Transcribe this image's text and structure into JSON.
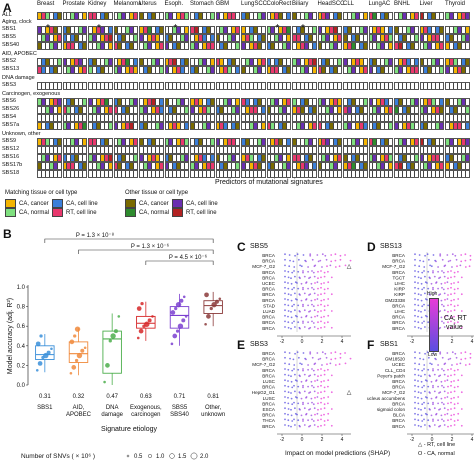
{
  "panel_a": {
    "label": "A",
    "tissues": [
      "Breast",
      "Prostate",
      "Kidney",
      "Melanoma",
      "Uterus",
      "Esoph.",
      "Stomach",
      "GBM",
      "LungSCC",
      "ColoRect",
      "Biliary",
      "HeadSCC",
      "CLL",
      "LungAC",
      "BNHL",
      "Liver",
      "Thyroid"
    ],
    "row_all": "ALL",
    "sections": [
      {
        "title": "Aging, clock",
        "rows": [
          "SBS1",
          "SBS5",
          "SBS40"
        ]
      },
      {
        "title": "AID, APOBEC",
        "rows": [
          "SBS2",
          "SBS13"
        ]
      },
      {
        "title": "DNA damage",
        "rows": [
          "SBS3"
        ]
      },
      {
        "title": "Carcinogen, exogenous",
        "rows": [
          "SBS6",
          "SBS26",
          "SBS4",
          "SBS7a"
        ]
      },
      {
        "title": "Unknown, other",
        "rows": [
          "SBS9",
          "SBS12",
          "SBS16",
          "SBS17b",
          "SBS18"
        ]
      }
    ],
    "xlabel": "Predictors of mutational signatures",
    "legend_left_title": "Matching tissue or cell type",
    "legend_right_title": "Other tissue or cell type",
    "legend_items": [
      {
        "label": "CA, cancer",
        "color": "#f4b400"
      },
      {
        "label": "CA, cell line",
        "color": "#3b7fd9"
      },
      {
        "label": "CA, normal",
        "color": "#7fe07f"
      },
      {
        "label": "RT, cell line",
        "color": "#e8386d"
      },
      {
        "label": "CA, cancer",
        "color": "#7a6a00"
      },
      {
        "label": "CA, cell line",
        "color": "#6a2fb0"
      },
      {
        "label": "CA, normal",
        "color": "#2e8b2e"
      },
      {
        "label": "RT, cell line",
        "color": "#b22222"
      }
    ],
    "stars": [
      "*",
      "*",
      "*",
      "*",
      "*"
    ]
  },
  "panel_b": {
    "label": "B",
    "chart_data": {
      "type": "box",
      "ylabel": "Model accuracy (adj. R²)",
      "xlabel": "Signature etiology",
      "ylim": [
        0,
        1
      ],
      "yticks": [
        "0.0",
        "0.2",
        "0.4",
        "0.6",
        "0.8",
        "1.0"
      ],
      "categories": [
        "SBS1",
        "AID, APOBEC",
        "DNA damage",
        "Exogenous, carcinogen",
        "SBS5 SBS40",
        "Other, unknown"
      ],
      "category_lines": [
        [
          "SBS1"
        ],
        [
          "AID,",
          "APOBEC"
        ],
        [
          "DNA",
          "damage"
        ],
        [
          "Exogenous,",
          "carcinogen"
        ],
        [
          "SBS5",
          "SBS40"
        ],
        [
          "Other,",
          "unknown"
        ]
      ],
      "colors": [
        "#3a8fd9",
        "#f08a3c",
        "#4cae4c",
        "#d62728",
        "#7b3fd0",
        "#8b3a3a"
      ],
      "medians": [
        0.31,
        0.32,
        0.47,
        0.63,
        0.71,
        0.81
      ],
      "median_labels": [
        "0.31",
        "0.32",
        "0.47",
        "0.63",
        "0.71",
        "0.81"
      ],
      "boxes": [
        {
          "q1": 0.26,
          "median": 0.31,
          "q3": 0.4,
          "lo": 0.13,
          "hi": 0.52
        },
        {
          "q1": 0.23,
          "median": 0.32,
          "q3": 0.44,
          "lo": 0.1,
          "hi": 0.58
        },
        {
          "q1": 0.12,
          "median": 0.47,
          "q3": 0.55,
          "lo": 0.0,
          "hi": 0.73
        },
        {
          "q1": 0.58,
          "median": 0.63,
          "q3": 0.7,
          "lo": 0.45,
          "hi": 0.85
        },
        {
          "q1": 0.58,
          "median": 0.71,
          "q3": 0.8,
          "lo": 0.4,
          "hi": 0.93
        },
        {
          "q1": 0.73,
          "median": 0.81,
          "q3": 0.86,
          "lo": 0.6,
          "hi": 0.95
        }
      ],
      "points": [
        [
          0.15,
          0.22,
          0.28,
          0.3,
          0.33,
          0.37,
          0.42,
          0.5
        ],
        [
          0.12,
          0.18,
          0.25,
          0.3,
          0.35,
          0.38,
          0.44,
          0.5,
          0.57
        ],
        [
          0.03,
          0.2,
          0.45,
          0.5,
          0.55,
          0.7
        ],
        [
          0.48,
          0.55,
          0.6,
          0.62,
          0.66,
          0.7,
          0.78,
          0.83
        ],
        [
          0.42,
          0.5,
          0.55,
          0.6,
          0.66,
          0.7,
          0.74,
          0.78,
          0.82,
          0.86,
          0.9
        ],
        [
          0.62,
          0.7,
          0.78,
          0.82,
          0.85,
          0.88,
          0.92
        ]
      ],
      "pvalues": [
        "P = 1.3 × 10⁻⁸",
        "P = 1.3 × 10⁻⁶",
        "P = 4.5 × 10⁻⁶"
      ],
      "size_legend_title": "Number of SNVs ( × 10⁶ )",
      "size_legend_values": [
        "0.5",
        "1.0",
        "1.5",
        "2.0"
      ]
    }
  },
  "panels_cdef": {
    "shared_xlabel": "Impact on model predictions (SHAP)",
    "xticks": [
      "-2",
      "0",
      "2",
      "4"
    ],
    "colorbar_title": [
      "CA, RT",
      "value"
    ],
    "colorbar_high": "High",
    "colorbar_low": "Low",
    "legend_note_1": "△ - RT, cell line",
    "legend_note_2": "O - CA, normal",
    "panels": [
      {
        "label": "C",
        "title": "SBS5",
        "rows": [
          "BRCA",
          "BRCA",
          "MCF-7_G2",
          "BRCA",
          "BRCA",
          "UCEC",
          "BRCA",
          "BRCA",
          "BRCA",
          "STAD",
          "LUAD",
          "BRCA",
          "BRCA",
          "BRCA"
        ],
        "markers": [
          "",
          "",
          "△",
          "",
          "",
          "",
          "",
          "",
          "",
          "",
          "",
          "",
          "",
          ""
        ]
      },
      {
        "label": "D",
        "title": "SBS13",
        "rows": [
          "BRCA",
          "BRCA",
          "MCF-7_G2",
          "BRCA",
          "TGCT",
          "LIHC",
          "KIRP",
          "KIRP",
          "GM23338",
          "BRCA",
          "LIHC",
          "BRCA",
          "BRCA",
          "BRCA"
        ],
        "markers": [
          "",
          "",
          "△",
          "",
          "",
          "",
          "",
          "",
          "",
          "",
          "",
          "",
          "",
          ""
        ]
      },
      {
        "label": "E",
        "title": "SBS3",
        "rows": [
          "BRCA",
          "BRCA",
          "MCF-7_G2",
          "BRCA",
          "BRCA",
          "LUSC",
          "BRCA",
          "HepG2_G1",
          "LUSC",
          "BRCA",
          "ESCA",
          "BRCA",
          "THCA",
          "BRCA"
        ],
        "markers": [
          "",
          "",
          "",
          "",
          "",
          "",
          "",
          "△",
          "",
          "",
          "",
          "",
          "",
          ""
        ]
      },
      {
        "label": "F",
        "title": "SBS1",
        "rows": [
          "BRCA",
          "GM18520",
          "UCEC",
          "CLL_CD4",
          "Peyer's patch",
          "BRCA",
          "BRCA",
          "MCF-7_G2",
          "nucleus accumbens",
          "BRCA",
          "sigmoid colon",
          "BLCA",
          "BRCA",
          "BRCA"
        ],
        "markers": [
          "",
          "O",
          "",
          "O",
          "",
          "",
          "",
          "△",
          "O",
          "",
          "O",
          "",
          "",
          ""
        ]
      }
    ]
  }
}
